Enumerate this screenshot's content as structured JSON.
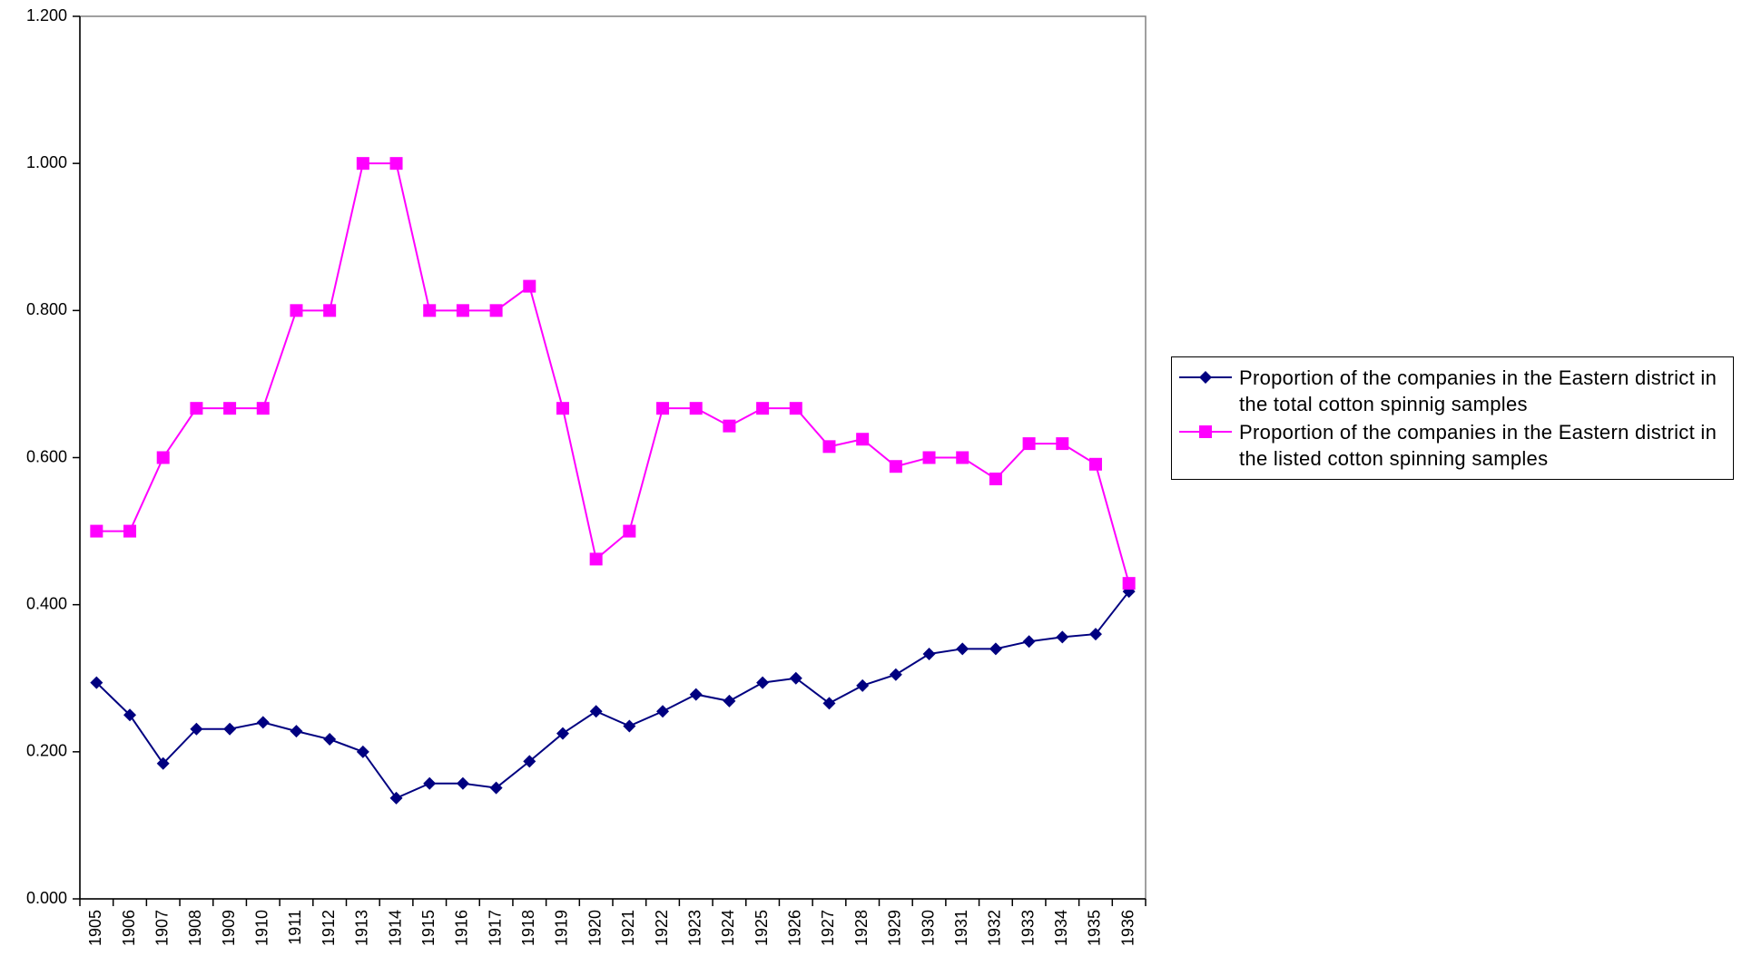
{
  "chart_data": {
    "type": "line",
    "categories": [
      "1905",
      "1906",
      "1907",
      "1908",
      "1909",
      "1910",
      "1911",
      "1912",
      "1913",
      "1914",
      "1915",
      "1916",
      "1917",
      "1918",
      "1919",
      "1920",
      "1921",
      "1922",
      "1923",
      "1924",
      "1925",
      "1926",
      "1927",
      "1928",
      "1929",
      "1930",
      "1931",
      "1932",
      "1933",
      "1934",
      "1935",
      "1936"
    ],
    "series": [
      {
        "name": "Proportion of the companies in the Eastern district in the total cotton spinnig samples",
        "color": "#000080",
        "marker": "diamond",
        "values": [
          0.294,
          0.25,
          0.184,
          0.231,
          0.231,
          0.24,
          0.228,
          0.217,
          0.2,
          0.137,
          0.157,
          0.157,
          0.151,
          0.187,
          0.225,
          0.255,
          0.235,
          0.255,
          0.278,
          0.269,
          0.294,
          0.3,
          0.266,
          0.29,
          0.305,
          0.333,
          0.34,
          0.34,
          0.35,
          0.356,
          0.36,
          0.418
        ]
      },
      {
        "name": "Proportion of the companies in the Eastern district in the listed cotton spinning samples",
        "color": "#ff00ff",
        "marker": "square",
        "values": [
          0.5,
          0.5,
          0.6,
          0.667,
          0.667,
          0.667,
          0.8,
          0.8,
          1,
          1,
          0.8,
          0.8,
          0.8,
          0.833,
          0.667,
          0.462,
          0.5,
          0.667,
          0.667,
          0.643,
          0.667,
          0.667,
          0.615,
          0.625,
          0.588,
          0.6,
          0.6,
          0.571,
          0.619,
          0.619,
          0.591,
          0.429
        ]
      }
    ],
    "ylim": [
      0,
      1.2
    ],
    "yticks": [
      {
        "value": 0,
        "label": "0.000"
      },
      {
        "value": 0.2,
        "label": "0.200"
      },
      {
        "value": 0.4,
        "label": "0.400"
      },
      {
        "value": 0.6,
        "label": "0.600"
      },
      {
        "value": 0.8,
        "label": "0.800"
      },
      {
        "value": 1,
        "label": "1.000"
      },
      {
        "value": 1.2,
        "label": "1.200"
      }
    ],
    "grid": false,
    "legend": "right"
  }
}
